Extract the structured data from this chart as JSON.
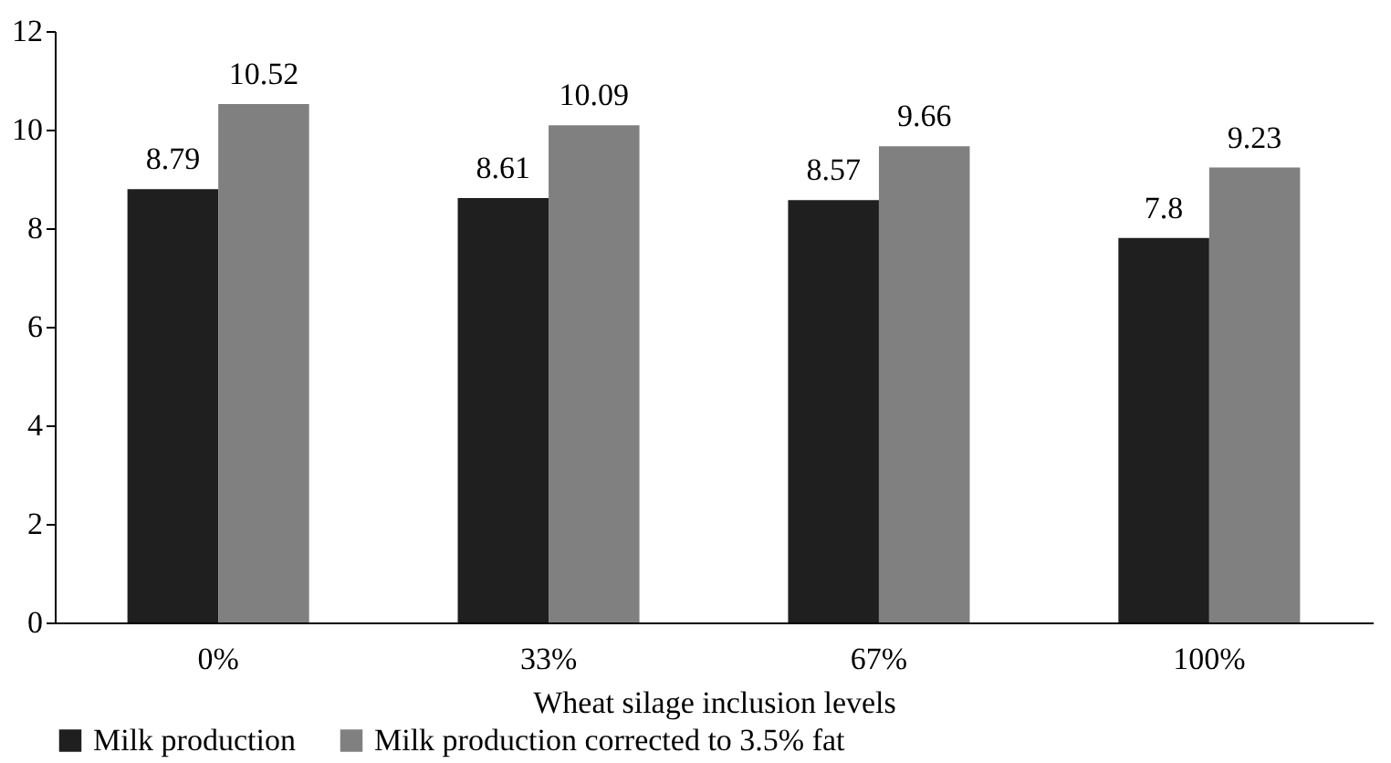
{
  "chart_data": {
    "type": "bar",
    "xlabel": "Wheat silage inclusion levels",
    "categories": [
      "0%",
      "33%",
      "67%",
      "100%"
    ],
    "series": [
      {
        "name": "Milk production",
        "color": "#1f1f1f",
        "values": [
          8.79,
          8.61,
          8.57,
          7.8
        ]
      },
      {
        "name": "Milk production corrected to 3.5% fat",
        "color": "#808080",
        "values": [
          10.52,
          10.09,
          9.66,
          9.23
        ]
      }
    ],
    "ylim": [
      0,
      12
    ],
    "yticks": [
      0,
      2,
      4,
      6,
      8,
      10,
      12
    ],
    "grid": false,
    "legend": "bottom",
    "data_labels": true
  }
}
